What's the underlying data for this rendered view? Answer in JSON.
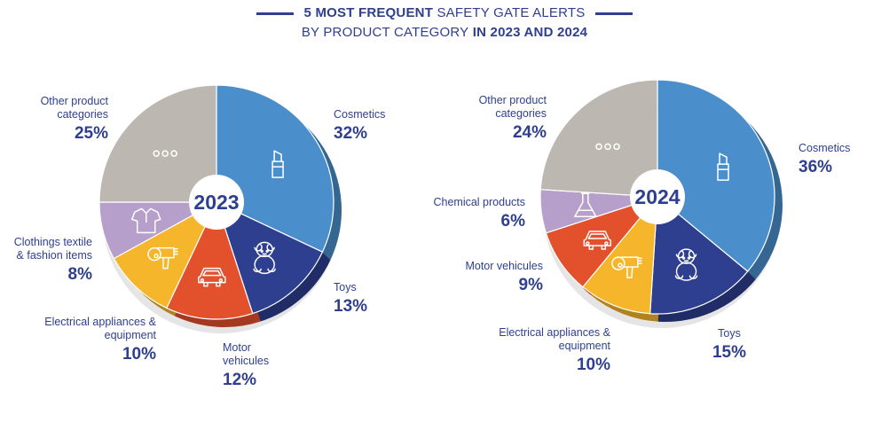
{
  "title": {
    "line1_bold": "5 MOST FREQUENT",
    "line1_rest": "SAFETY GATE ALERTS",
    "line2_rest": "BY PRODUCT CATEGORY",
    "line2_bold": "IN 2023 AND 2024"
  },
  "colors": {
    "Cosmetics": "#4a8fcb",
    "Toys": "#2e3f8f",
    "Motor vehicules": "#e2512c",
    "Electrical appliances & equipment": "#f6b62c",
    "Clothings textile & fashion items": "#b79fcb",
    "Chemical products": "#b79fcb",
    "Other product categories": "#bcb7b1"
  },
  "chart_data": [
    {
      "type": "pie",
      "title": "2023",
      "slices": [
        {
          "name": "Cosmetics",
          "label": "Cosmetics",
          "value": 32,
          "pct_label": "32%",
          "icon": "lipstick-icon"
        },
        {
          "name": "Toys",
          "label": "Toys",
          "value": 13,
          "pct_label": "13%",
          "icon": "teddy-bear-icon"
        },
        {
          "name": "Motor vehicules",
          "label": "Motor vehicules",
          "value": 12,
          "pct_label": "12%",
          "icon": "car-icon"
        },
        {
          "name": "Electrical appliances & equipment",
          "label": "Electrical appliances & equipment",
          "value": 10,
          "pct_label": "10%",
          "icon": "hair-dryer-icon"
        },
        {
          "name": "Clothings textile & fashion items",
          "label": "Clothings textile & fashion items",
          "value": 8,
          "pct_label": "8%",
          "icon": "shirt-icon"
        },
        {
          "name": "Other product categories",
          "label": "Other product categories",
          "value": 25,
          "pct_label": "25%",
          "icon": "ellipsis-icon"
        }
      ]
    },
    {
      "type": "pie",
      "title": "2024",
      "slices": [
        {
          "name": "Cosmetics",
          "label": "Cosmetics",
          "value": 36,
          "pct_label": "36%",
          "icon": "lipstick-icon"
        },
        {
          "name": "Toys",
          "label": "Toys",
          "value": 15,
          "pct_label": "15%",
          "icon": "teddy-bear-icon"
        },
        {
          "name": "Electrical appliances & equipment",
          "label": "Electrical appliances & equipment",
          "value": 10,
          "pct_label": "10%",
          "icon": "hair-dryer-icon"
        },
        {
          "name": "Motor vehicules",
          "label": "Motor vehicules",
          "value": 9,
          "pct_label": "9%",
          "icon": "car-icon"
        },
        {
          "name": "Chemical products",
          "label": "Chemical products",
          "value": 6,
          "pct_label": "6%",
          "icon": "flask-icon"
        },
        {
          "name": "Other product categories",
          "label": "Other product categories",
          "value": 24,
          "pct_label": "24%",
          "icon": "ellipsis-icon"
        }
      ]
    }
  ]
}
